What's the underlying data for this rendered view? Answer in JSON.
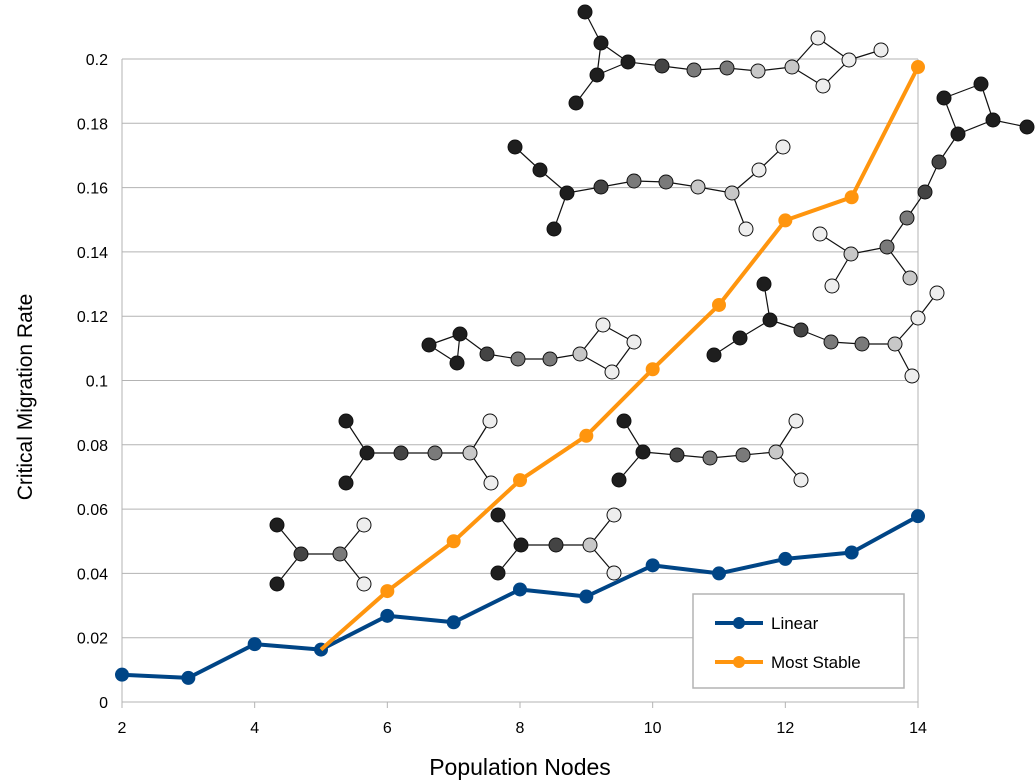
{
  "chart_data": {
    "type": "line",
    "title": "",
    "xlabel": "Population Nodes",
    "ylabel": "Critical Migration Rate",
    "xlim": [
      2,
      14
    ],
    "ylim": [
      0,
      0.2
    ],
    "xticks": [
      2,
      4,
      6,
      8,
      10,
      12,
      14
    ],
    "yticks": [
      "0",
      "0.02",
      "0.04",
      "0.06",
      "0.08",
      "0.1",
      "0.12",
      "0.14",
      "0.16",
      "0.18",
      "0.2"
    ],
    "grid": "horizontal",
    "legend_position": "bottom-right",
    "series": [
      {
        "name": "Linear",
        "color": "#004586",
        "x": [
          2,
          3,
          4,
          5,
          6,
          7,
          8,
          9,
          10,
          11,
          12,
          13,
          14
        ],
        "y": [
          0.0085,
          0.0075,
          0.018,
          0.0163,
          0.0268,
          0.0248,
          0.035,
          0.0328,
          0.0425,
          0.04,
          0.0445,
          0.0465,
          0.0578
        ]
      },
      {
        "name": "Most Stable",
        "color": "#ff950e",
        "x": [
          5,
          6,
          7,
          8,
          9,
          10,
          11,
          12,
          13,
          14
        ],
        "y": [
          0.0163,
          0.0345,
          0.05,
          0.069,
          0.0828,
          0.1035,
          0.1235,
          0.1498,
          0.157,
          0.1975
        ]
      }
    ]
  }
}
